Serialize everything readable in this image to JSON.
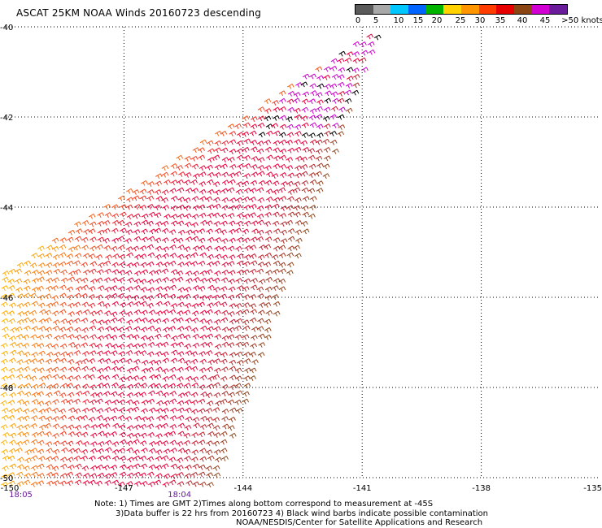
{
  "title": "ASCAT 25KM NOAA Winds 20160723 descending",
  "legend": {
    "tick_labels": [
      "0",
      "5",
      "10",
      "15",
      "20",
      "25",
      "30",
      "35",
      "40",
      "45",
      ">50 knots"
    ],
    "colors": [
      "#5a5a5a",
      "#a8a8a8",
      "#00c8ff",
      "#0064ff",
      "#00b400",
      "#ffd200",
      "#ff9600",
      "#ff3c00",
      "#e60000",
      "#8b4513",
      "#d200d2",
      "#6a1b9a"
    ]
  },
  "axes": {
    "lat_labels": [
      "-40",
      "-42",
      "-44",
      "-46",
      "-48",
      "-50"
    ],
    "lon_labels": [
      "-150",
      "-147",
      "-144",
      "-141",
      "-138",
      "-135"
    ],
    "lat_values": [
      -40,
      -42,
      -44,
      -46,
      -48,
      -50
    ],
    "lon_values": [
      -150,
      -147,
      -144,
      -141,
      -138,
      -135
    ],
    "grid": "dotted"
  },
  "times": [
    {
      "label": "18:05",
      "lon": -149.6
    },
    {
      "label": "18:04",
      "lon": -145.6
    }
  ],
  "swath_colors": {
    "south_west": "#ffb400",
    "center": "#e8003c",
    "north_east": "#8b4a1c",
    "strong": "#cc00cc",
    "contaminated": "#000000"
  },
  "notes": {
    "line1": "Note: 1) Times are GMT 2)Times along bottom correspond to measurement at -45S",
    "line2": "3)Data buffer is 22 hrs from 20160723 4) Black wind barbs indicate possible contamination",
    "credit": "NOAA/NESDIS/Center for Satellite Applications and Research"
  }
}
